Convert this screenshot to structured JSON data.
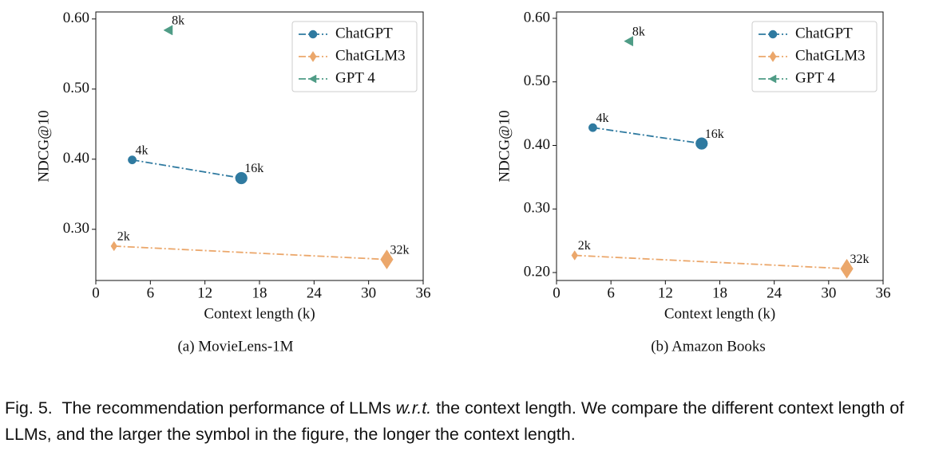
{
  "chart_data": [
    {
      "type": "line",
      "subtitle": "(a)  MovieLens-1M",
      "xlabel": "Context length (k)",
      "ylabel": "NDCG@10",
      "xlim": [
        0,
        36
      ],
      "xticks": [
        0,
        6,
        12,
        18,
        24,
        30,
        36
      ],
      "ylim": [
        0.227,
        0.61
      ],
      "yticks": [
        {
          "value": 0.3,
          "label": "0.30"
        },
        {
          "value": 0.4,
          "label": "0.40"
        },
        {
          "value": 0.5,
          "label": "0.50"
        },
        {
          "value": 0.6,
          "label": "0.60"
        }
      ],
      "legend": "upper right",
      "series": [
        {
          "name": "ChatGPT",
          "color": "#2f7aa0",
          "marker": "circle",
          "x": [
            4,
            16
          ],
          "values": [
            0.399,
            0.373
          ],
          "x_labels": [
            "4k",
            "16k"
          ]
        },
        {
          "name": "ChatGLM3",
          "color": "#eba76b",
          "marker": "diamond",
          "x": [
            2,
            32
          ],
          "values": [
            0.276,
            0.257
          ],
          "x_labels": [
            "2k",
            "32k"
          ]
        },
        {
          "name": "GPT 4",
          "color": "#4f9c86",
          "marker": "triangle-left",
          "x": [
            8
          ],
          "values": [
            0.584
          ],
          "x_labels": [
            "8k"
          ]
        }
      ]
    },
    {
      "type": "line",
      "subtitle": "(b)  Amazon Books",
      "xlabel": "Context length (k)",
      "ylabel": "NDCG@10",
      "xlim": [
        0,
        36
      ],
      "xticks": [
        0,
        6,
        12,
        18,
        24,
        30,
        36
      ],
      "ylim": [
        0.1875,
        0.61
      ],
      "yticks": [
        {
          "value": 0.2,
          "label": "0.20"
        },
        {
          "value": 0.3,
          "label": "0.30"
        },
        {
          "value": 0.4,
          "label": "0.40"
        },
        {
          "value": 0.5,
          "label": "0.50"
        },
        {
          "value": 0.6,
          "label": "0.60"
        }
      ],
      "legend": "upper right",
      "series": [
        {
          "name": "ChatGPT",
          "color": "#2f7aa0",
          "marker": "circle",
          "x": [
            4,
            16
          ],
          "values": [
            0.428,
            0.403
          ],
          "x_labels": [
            "4k",
            "16k"
          ]
        },
        {
          "name": "ChatGLM3",
          "color": "#eba76b",
          "marker": "diamond",
          "x": [
            2,
            32
          ],
          "values": [
            0.227,
            0.206
          ],
          "x_labels": [
            "2k",
            "32k"
          ]
        },
        {
          "name": "GPT 4",
          "color": "#4f9c86",
          "marker": "triangle-left",
          "x": [
            8
          ],
          "values": [
            0.564
          ],
          "x_labels": [
            "8k"
          ]
        }
      ]
    }
  ],
  "caption": {
    "label": "Fig. 5.",
    "parts": [
      "The recommendation performance of LLMs",
      "w.r.t.",
      "the context length. We compare the different context length of LLMs, and the larger the symbol in the figure, the longer the context length."
    ]
  }
}
